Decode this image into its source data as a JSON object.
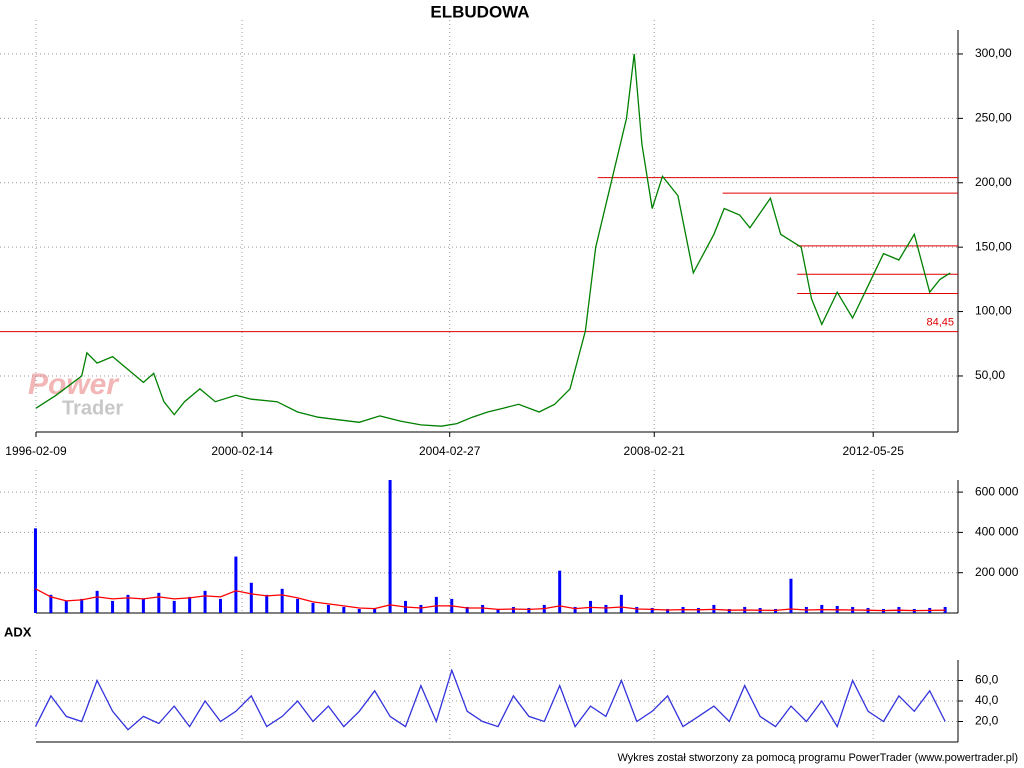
{
  "chart_data": [
    {
      "type": "line",
      "title": "ELBUDOWA",
      "xlim": [
        1995.41,
        2014.05
      ],
      "ylim": [
        6.5,
        318.6
      ],
      "xticks": [
        {
          "value": 1996.11,
          "label": "1996-02-09"
        },
        {
          "value": 2000.12,
          "label": "2000-02-14"
        },
        {
          "value": 2004.16,
          "label": "2004-02-27"
        },
        {
          "value": 2008.14,
          "label": "2008-02-21"
        },
        {
          "value": 2012.4,
          "label": "2012-05-25"
        }
      ],
      "yticks": [
        {
          "value": 50,
          "label": "50,00"
        },
        {
          "value": 100,
          "label": "100,00"
        },
        {
          "value": 150,
          "label": "150,00"
        },
        {
          "value": 200,
          "label": "200,00"
        },
        {
          "value": 250,
          "label": "250,00"
        },
        {
          "value": 300,
          "label": "300,00"
        }
      ],
      "grid": true,
      "series": [
        {
          "type": "line",
          "color": "#008000",
          "x": [
            1996.11,
            1996.5,
            1997.0,
            1997.1,
            1997.3,
            1997.6,
            1997.9,
            1998.2,
            1998.4,
            1998.6,
            1998.8,
            1999.0,
            1999.3,
            1999.6,
            2000.0,
            2000.3,
            2000.8,
            2001.2,
            2001.6,
            2002.0,
            2002.4,
            2002.8,
            2003.2,
            2003.6,
            2004.0,
            2004.3,
            2004.6,
            2004.9,
            2005.2,
            2005.5,
            2005.9,
            2006.2,
            2006.5,
            2006.8,
            2007.0,
            2007.3,
            2007.6,
            2007.75,
            2007.9,
            2008.1,
            2008.3,
            2008.6,
            2008.9,
            2009.3,
            2009.5,
            2009.8,
            2010.0,
            2010.4,
            2010.6,
            2011.0,
            2011.2,
            2011.4,
            2011.7,
            2012.0,
            2012.3,
            2012.6,
            2012.9,
            2013.2,
            2013.5,
            2013.7,
            2013.9
          ],
          "values": [
            25,
            35,
            50,
            68,
            60,
            65,
            55,
            45,
            52,
            30,
            20,
            30,
            40,
            30,
            35,
            32,
            30,
            22,
            18,
            16,
            14,
            19,
            15,
            12,
            11,
            13,
            18,
            22,
            25,
            28,
            22,
            28,
            40,
            85,
            150,
            200,
            250,
            300,
            230,
            180,
            205,
            190,
            130,
            160,
            180,
            175,
            165,
            188,
            160,
            150,
            110,
            90,
            115,
            95,
            120,
            145,
            140,
            160,
            115,
            125,
            130
          ]
        }
      ],
      "hlines": [
        {
          "value": 84.45,
          "from": 1995.41,
          "label": "84,45"
        },
        {
          "value": 204,
          "from": 2007.04
        },
        {
          "value": 192,
          "from": 2009.47
        },
        {
          "value": 151,
          "from": 2010.92
        },
        {
          "value": 129,
          "from": 2010.92
        },
        {
          "value": 114,
          "from": 2010.92
        }
      ],
      "hline_color": "#e00000"
    },
    {
      "type": "bar",
      "xlim": [
        1995.41,
        2014.05
      ],
      "ylim": [
        0,
        660000
      ],
      "yticks": [
        {
          "value": 200000,
          "label": "200 000"
        },
        {
          "value": 400000,
          "label": "400 000"
        },
        {
          "value": 600000,
          "label": "600 000"
        }
      ],
      "grid": true,
      "x": [
        1996.1,
        1996.4,
        1996.7,
        1997.0,
        1997.3,
        1997.6,
        1997.9,
        1998.2,
        1998.5,
        1998.8,
        1999.1,
        1999.4,
        1999.7,
        2000.0,
        2000.3,
        2000.6,
        2000.9,
        2001.2,
        2001.5,
        2001.8,
        2002.1,
        2002.4,
        2002.7,
        2003.0,
        2003.3,
        2003.6,
        2003.9,
        2004.2,
        2004.5,
        2004.8,
        2005.1,
        2005.4,
        2005.7,
        2006.0,
        2006.3,
        2006.6,
        2006.9,
        2007.2,
        2007.5,
        2007.8,
        2008.1,
        2008.4,
        2008.7,
        2009.0,
        2009.3,
        2009.6,
        2009.9,
        2010.2,
        2010.5,
        2010.8,
        2011.1,
        2011.4,
        2011.7,
        2012.0,
        2012.3,
        2012.6,
        2012.9,
        2013.2,
        2013.5,
        2013.8
      ],
      "series": [
        {
          "type": "bar",
          "color": "#0000ff",
          "values": [
            420000,
            90000,
            60000,
            70000,
            110000,
            60000,
            90000,
            70000,
            100000,
            60000,
            80000,
            110000,
            70000,
            280000,
            150000,
            90000,
            120000,
            70000,
            50000,
            40000,
            30000,
            20000,
            25000,
            660000,
            60000,
            40000,
            80000,
            70000,
            30000,
            40000,
            20000,
            30000,
            25000,
            40000,
            210000,
            30000,
            60000,
            40000,
            90000,
            30000,
            25000,
            20000,
            30000,
            25000,
            40000,
            20000,
            30000,
            25000,
            20000,
            170000,
            30000,
            40000,
            35000,
            30000,
            25000,
            20000,
            30000,
            20000,
            25000,
            30000
          ]
        },
        {
          "type": "line",
          "color": "#ff0000",
          "values": [
            120000,
            80000,
            60000,
            65000,
            80000,
            70000,
            75000,
            70000,
            80000,
            70000,
            75000,
            85000,
            80000,
            110000,
            95000,
            85000,
            90000,
            75000,
            55000,
            45000,
            35000,
            25000,
            22000,
            40000,
            30000,
            25000,
            35000,
            35000,
            25000,
            25000,
            18000,
            20000,
            18000,
            22000,
            35000,
            22000,
            28000,
            25000,
            30000,
            20000,
            18000,
            15000,
            17000,
            16000,
            18000,
            14000,
            15000,
            14000,
            13000,
            20000,
            15000,
            17000,
            16000,
            15000,
            14000,
            12000,
            14000,
            12000,
            13000,
            14000
          ]
        }
      ]
    },
    {
      "type": "line",
      "title": "ADX",
      "xlim": [
        1995.41,
        2014.05
      ],
      "ylim": [
        0,
        80
      ],
      "yticks": [
        {
          "value": 20,
          "label": "20,0"
        },
        {
          "value": 40,
          "label": "40,0"
        },
        {
          "value": 60,
          "label": "60,0"
        }
      ],
      "grid": true,
      "series": [
        {
          "type": "line",
          "color": "#3333dd",
          "x": [
            1996.1,
            1996.4,
            1996.7,
            1997.0,
            1997.3,
            1997.6,
            1997.9,
            1998.2,
            1998.5,
            1998.8,
            1999.1,
            1999.4,
            1999.7,
            2000.0,
            2000.3,
            2000.6,
            2000.9,
            2001.2,
            2001.5,
            2001.8,
            2002.1,
            2002.4,
            2002.7,
            2003.0,
            2003.3,
            2003.6,
            2003.9,
            2004.2,
            2004.5,
            2004.8,
            2005.1,
            2005.4,
            2005.7,
            2006.0,
            2006.3,
            2006.6,
            2006.9,
            2007.2,
            2007.5,
            2007.8,
            2008.1,
            2008.4,
            2008.7,
            2009.0,
            2009.3,
            2009.6,
            2009.9,
            2010.2,
            2010.5,
            2010.8,
            2011.1,
            2011.4,
            2011.7,
            2012.0,
            2012.3,
            2012.6,
            2012.9,
            2013.2,
            2013.5,
            2013.8
          ],
          "values": [
            15,
            45,
            25,
            20,
            60,
            30,
            12,
            25,
            18,
            35,
            15,
            40,
            20,
            30,
            45,
            15,
            25,
            40,
            20,
            35,
            15,
            30,
            50,
            25,
            15,
            55,
            20,
            70,
            30,
            20,
            15,
            45,
            25,
            20,
            55,
            15,
            35,
            25,
            60,
            20,
            30,
            45,
            15,
            25,
            35,
            20,
            55,
            25,
            15,
            35,
            20,
            40,
            15,
            60,
            30,
            20,
            45,
            30,
            50,
            20
          ]
        }
      ]
    }
  ],
  "watermark": [
    "Power",
    "Trader"
  ],
  "footer": "Wykres został stworzony za pomocą programu PowerTrader (www.powertrader.pl)"
}
